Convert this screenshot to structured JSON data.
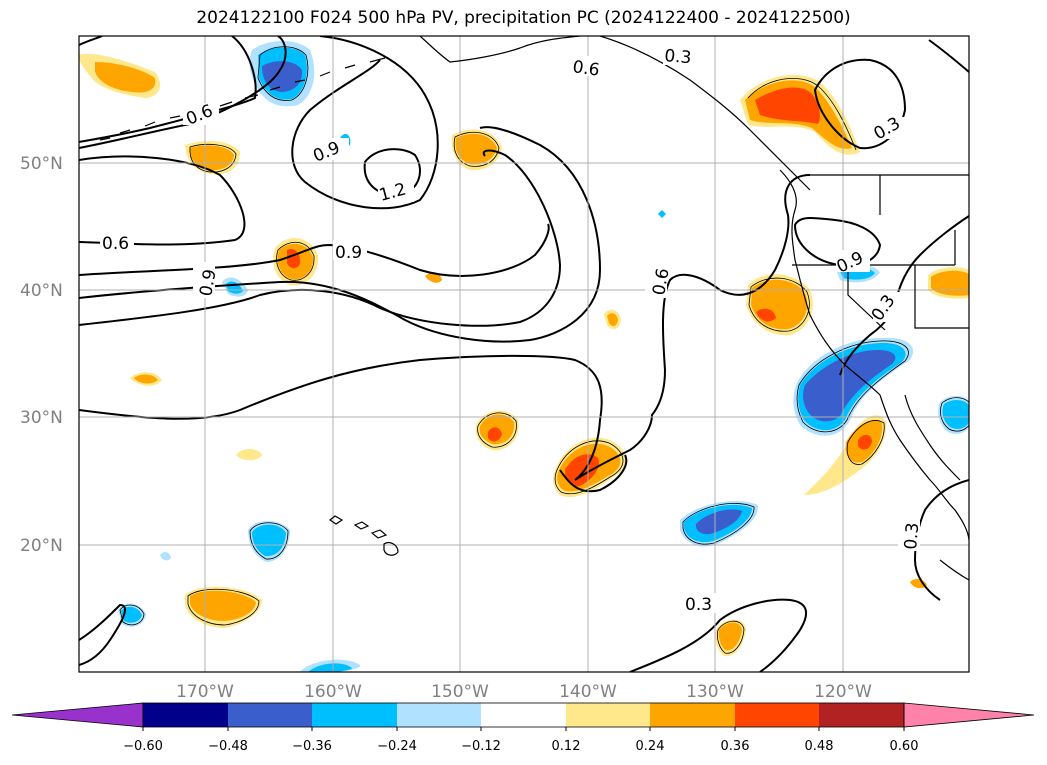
{
  "title": "2024122100 F024 500 hPa PV, precipitation PC (2024122400 - 2024122500)",
  "map": {
    "latitude_labels": [
      "50°N",
      "40°N",
      "30°N",
      "20°N"
    ],
    "longitude_labels": [
      "170°W",
      "160°W",
      "150°W",
      "140°W",
      "130°W",
      "120°W"
    ],
    "pv_contour_labels": [
      "0.6",
      "0.9",
      "1.2",
      "0.9",
      "0.6",
      "0.9",
      "0.6",
      "0.3",
      "0.6",
      "0.3",
      "0.9",
      "0.3",
      "0.3",
      "0.3"
    ],
    "gridlines": true,
    "contour_color": "#000000"
  },
  "colorbar": {
    "tick_labels": [
      "−0.60",
      "−0.48",
      "−0.36",
      "−0.24",
      "−0.12",
      "0.12",
      "0.24",
      "0.36",
      "0.48",
      "0.60"
    ],
    "colors": [
      "#9932cc",
      "#00008b",
      "#3a5fcd",
      "#00bfff",
      "#b0e2ff",
      "#ffffff",
      "#ffe88c",
      "#ffa500",
      "#ff4500",
      "#b22222",
      "#ff82ab"
    ],
    "extend": "both"
  }
}
